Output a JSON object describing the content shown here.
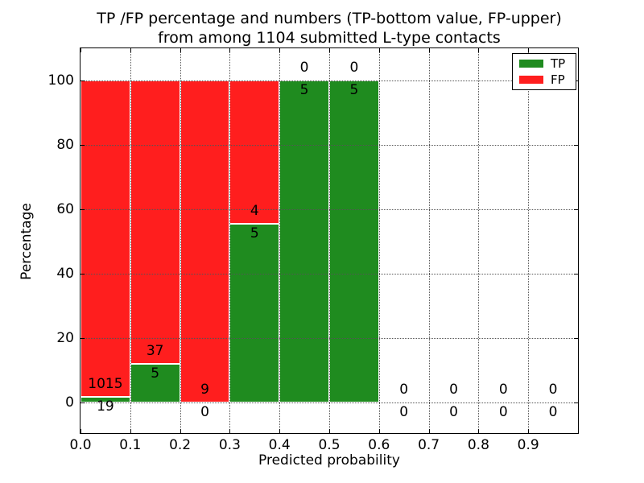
{
  "title": {
    "line1": "TP /FP percentage and numbers (TP-bottom value, FP-upper)",
    "line2": "from among 1104 submitted L-type contacts"
  },
  "axes": {
    "xlabel": "Predicted probability",
    "ylabel": "Percentage",
    "xticks": [
      {
        "label": "0.0",
        "value": 0.0
      },
      {
        "label": "0.1",
        "value": 0.1
      },
      {
        "label": "0.2",
        "value": 0.2
      },
      {
        "label": "0.3",
        "value": 0.3
      },
      {
        "label": "0.4",
        "value": 0.4
      },
      {
        "label": "0.5",
        "value": 0.5
      },
      {
        "label": "0.6",
        "value": 0.6
      },
      {
        "label": "0.7",
        "value": 0.7
      },
      {
        "label": "0.8",
        "value": 0.8
      },
      {
        "label": "0.9",
        "value": 0.9
      }
    ],
    "yticks": [
      {
        "label": "0",
        "value": 0
      },
      {
        "label": "20",
        "value": 20
      },
      {
        "label": "40",
        "value": 40
      },
      {
        "label": "60",
        "value": 60
      },
      {
        "label": "80",
        "value": 80
      },
      {
        "label": "100",
        "value": 100
      }
    ],
    "xlim": [
      0.0,
      1.0
    ],
    "ylim": [
      -10,
      110
    ]
  },
  "legend": {
    "position": "upper right",
    "items": [
      {
        "label": "TP",
        "color": "#1f8b1f"
      },
      {
        "label": "FP",
        "color": "#ff1e1e"
      }
    ]
  },
  "chart_data": {
    "type": "bar",
    "stacking": "percent",
    "title": "TP /FP percentage and numbers (TP-bottom value, FP-upper) from among 1104 submitted L-type contacts",
    "xlabel": "Predicted probability",
    "ylabel": "Percentage",
    "bin_edges": [
      0.0,
      0.1,
      0.2,
      0.3,
      0.4,
      0.5,
      0.6,
      0.7,
      0.8,
      0.9,
      1.0
    ],
    "series": [
      {
        "name": "TP",
        "color": "#1f8b1f",
        "counts": [
          19,
          5,
          0,
          5,
          5,
          5,
          0,
          0,
          0,
          0
        ]
      },
      {
        "name": "FP",
        "color": "#ff1e1e",
        "counts": [
          1015,
          37,
          9,
          4,
          0,
          0,
          0,
          0,
          0,
          0
        ]
      }
    ],
    "tp_percent_by_bin": [
      1.84,
      11.9,
      0.0,
      55.56,
      100.0,
      100.0,
      null,
      null,
      null,
      null
    ],
    "total_submitted": 1104,
    "grid": "dotted",
    "legend_position": "upper right",
    "xlim": [
      0.0,
      1.0
    ],
    "ylim": [
      -10,
      110
    ]
  }
}
